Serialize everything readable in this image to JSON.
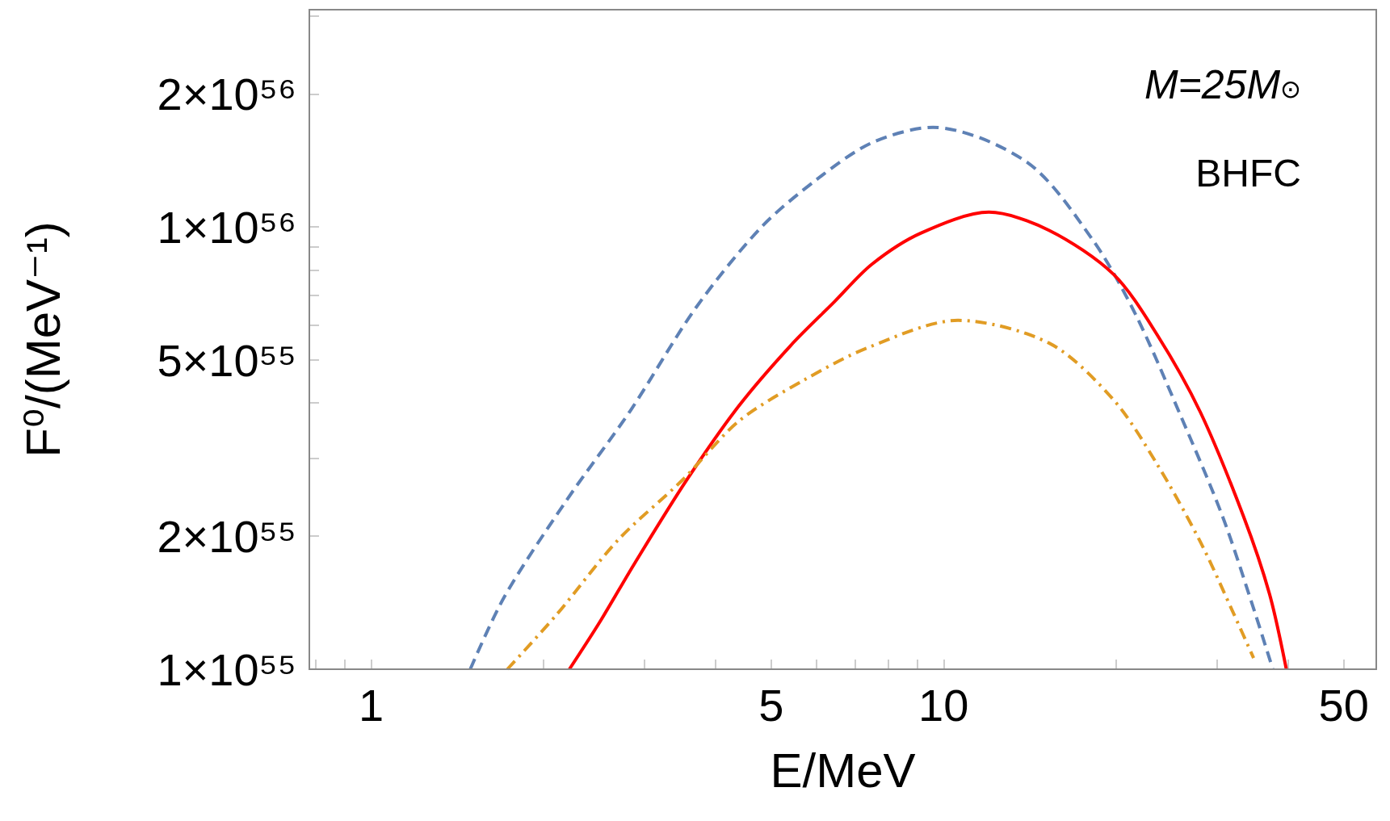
{
  "chart_data": {
    "type": "line",
    "xlabel": "E/MeV",
    "ylabel": "F⁰/(MeV⁻¹)",
    "annotations": [
      "M=25M$_{⊙}$",
      "BHFC"
    ],
    "log": "xy",
    "grid": false,
    "marker": "none",
    "xlim": [
      0.78,
      57
    ],
    "ylim": [
      1e+55,
      3.1e+56
    ],
    "xticks": [
      {
        "value": 0.8,
        "label": null
      },
      {
        "value": 0.9,
        "label": null
      },
      1,
      {
        "value": 2,
        "label": null
      },
      {
        "value": 3,
        "label": null
      },
      {
        "value": 4,
        "label": null
      },
      5,
      {
        "value": 6,
        "label": null
      },
      {
        "value": 7,
        "label": null
      },
      {
        "value": 8,
        "label": null
      },
      {
        "value": 9,
        "label": null
      },
      10,
      {
        "value": 20,
        "label": null
      },
      {
        "value": 30,
        "label": null
      },
      {
        "value": 40,
        "label": null
      },
      50
    ],
    "yticks": [
      {
        "value": 1e+55,
        "label": "1×10⁵⁵"
      },
      {
        "value": 2e+55,
        "label": "2×10⁵⁵"
      },
      {
        "value": 3e+55,
        "label": null
      },
      {
        "value": 4e+55,
        "label": null
      },
      {
        "value": 5e+55,
        "label": "5×10⁵⁵"
      },
      {
        "value": 6e+55,
        "label": null
      },
      {
        "value": 7e+55,
        "label": null
      },
      {
        "value": 8e+55,
        "label": null
      },
      {
        "value": 9e+55,
        "label": null
      },
      {
        "value": 1e+56,
        "label": "1×10⁵⁶"
      },
      {
        "value": 2e+56,
        "label": "2×10⁵⁶"
      },
      {
        "value": 3e+56,
        "label": null
      }
    ],
    "series": [
      {
        "color": "#5e81b5",
        "line_style": "dashed",
        "x": [
          1.49,
          1.71,
          2.19,
          2.84,
          3.69,
          4.79,
          6.0,
          7.49,
          9.58,
          14.0,
          18.2,
          21.6,
          25.8,
          30.7,
          34.5,
          37.6
        ],
        "values": [
          1e+55,
          1.46e+55,
          2.4e+55,
          3.85e+55,
          6.56e+55,
          9.95e+55,
          1.28e+56,
          1.55e+56,
          1.68e+56,
          1.4e+56,
          9.37e+55,
          6.38e+55,
          3.81e+55,
          2.22e+55,
          1.42e+55,
          1e+55
        ]
      },
      {
        "color": "#ff0000",
        "line_style": "solid",
        "x": [
          2.22,
          2.51,
          2.89,
          3.56,
          4.39,
          5.41,
          6.45,
          7.49,
          9.12,
          12.0,
          15.3,
          19.8,
          23.6,
          28.1,
          33.4,
          37.1,
          39.7
        ],
        "values": [
          1e+55,
          1.28e+55,
          1.74e+55,
          2.68e+55,
          3.94e+55,
          5.4e+55,
          6.78e+55,
          8.23e+55,
          9.68e+55,
          1.08e+56,
          9.82e+55,
          7.82e+55,
          5.71e+55,
          3.81e+55,
          2.22e+55,
          1.48e+55,
          1e+55
        ]
      },
      {
        "color": "#e19c24",
        "line_style": "dashdot",
        "x": [
          1.73,
          2.11,
          2.7,
          3.5,
          4.39,
          5.71,
          7.41,
          10.6,
          15.3,
          19.8,
          23.6,
          28.1,
          32.0,
          34.8
        ],
        "values": [
          1e+55,
          1.33e+55,
          1.96e+55,
          2.68e+55,
          3.64e+55,
          4.51e+55,
          5.35e+55,
          6.15e+55,
          5.46e+55,
          4.07e+55,
          2.91e+55,
          1.94e+55,
          1.35e+55,
          1.06e+55
        ]
      }
    ]
  }
}
